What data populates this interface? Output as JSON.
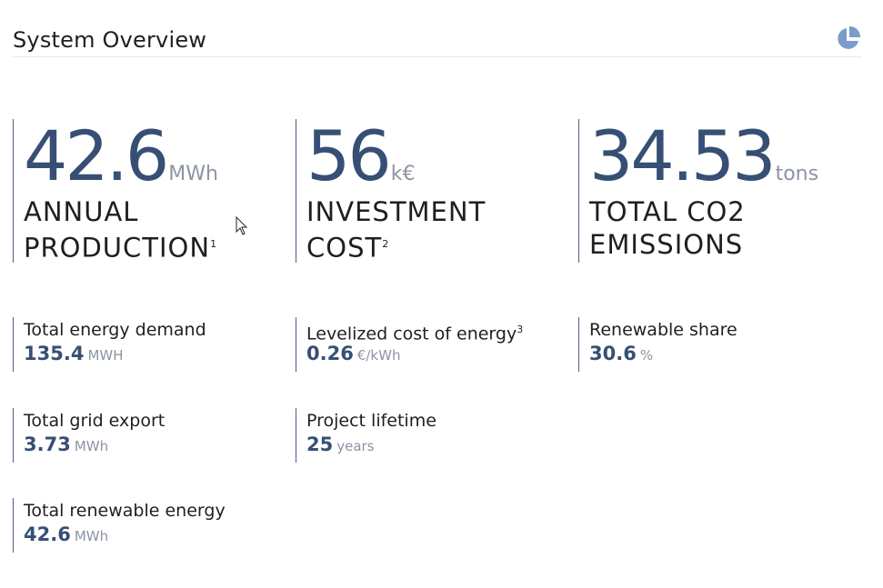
{
  "header": {
    "title": "System Overview",
    "chart_icon": "pie-chart-icon",
    "accent_color": "#7b9bcb"
  },
  "kpis": [
    {
      "value": "42.6",
      "unit": "MWh",
      "label_line1": "ANNUAL",
      "label_line2": "PRODUCTION",
      "footnote": "1"
    },
    {
      "value": "56",
      "unit": "k€",
      "label_line1": "INVESTMENT",
      "label_line2": "COST",
      "footnote": "2"
    },
    {
      "value": "34.53",
      "unit": "tons",
      "label_line1": "TOTAL CO2",
      "label_line2": "EMISSIONS",
      "footnote": ""
    }
  ],
  "stats": [
    {
      "label": "Total energy demand",
      "value": "135.4",
      "unit": "MWH",
      "footnote": ""
    },
    {
      "label": "Levelized cost of energy",
      "value": "0.26",
      "unit": "€/kWh",
      "footnote": "3"
    },
    {
      "label": "Renewable share",
      "value": "30.6",
      "unit": "%",
      "footnote": ""
    },
    {
      "label": "Total grid export",
      "value": "3.73",
      "unit": "MWh",
      "footnote": ""
    },
    {
      "label": "Project lifetime",
      "value": "25",
      "unit": "years",
      "footnote": ""
    },
    {
      "label": "Total renewable energy",
      "value": "42.6",
      "unit": "MWh",
      "footnote": ""
    }
  ],
  "colors": {
    "primary_value": "#374f74",
    "unit": "#8c94a3",
    "divider": "#4a5f7d"
  }
}
